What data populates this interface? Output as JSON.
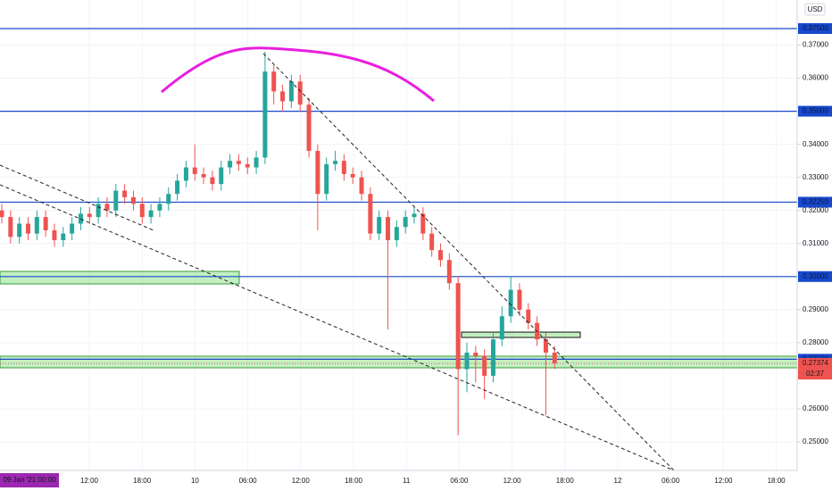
{
  "chart_data": {
    "type": "candlestick",
    "currency": "USD",
    "open": [
      0.32,
      0.318,
      0.312,
      0.316,
      0.313,
      0.318,
      0.314,
      0.311,
      0.313,
      0.316,
      0.319,
      0.318,
      0.322,
      0.32,
      0.326,
      0.324,
      0.322,
      0.318,
      0.32,
      0.322,
      0.325,
      0.329,
      0.333,
      0.331,
      0.33,
      0.328,
      0.333,
      0.335,
      0.334,
      0.333,
      0.336,
      0.362,
      0.356,
      0.353,
      0.359,
      0.352,
      0.338,
      0.325,
      0.334,
      0.335,
      0.331,
      0.33,
      0.325,
      0.313,
      0.318,
      0.311,
      0.315,
      0.318,
      0.319,
      0.313,
      0.308,
      0.305,
      0.298,
      0.272,
      0.277,
      0.276,
      0.27,
      0.281,
      0.288,
      0.296,
      0.29,
      0.286,
      0.281,
      0.277
    ],
    "high": [
      0.322,
      0.32,
      0.318,
      0.318,
      0.32,
      0.32,
      0.316,
      0.315,
      0.318,
      0.321,
      0.321,
      0.324,
      0.324,
      0.328,
      0.328,
      0.326,
      0.324,
      0.322,
      0.324,
      0.327,
      0.331,
      0.335,
      0.34,
      0.333,
      0.332,
      0.335,
      0.337,
      0.337,
      0.336,
      0.338,
      0.368,
      0.364,
      0.358,
      0.361,
      0.361,
      0.354,
      0.34,
      0.336,
      0.338,
      0.337,
      0.333,
      0.332,
      0.327,
      0.32,
      0.32,
      0.317,
      0.32,
      0.321,
      0.321,
      0.315,
      0.31,
      0.307,
      0.3,
      0.28,
      0.279,
      0.278,
      0.283,
      0.291,
      0.3,
      0.298,
      0.292,
      0.288,
      0.283,
      0.279
    ],
    "low": [
      0.316,
      0.31,
      0.31,
      0.311,
      0.311,
      0.312,
      0.309,
      0.309,
      0.311,
      0.314,
      0.316,
      0.316,
      0.318,
      0.318,
      0.322,
      0.32,
      0.316,
      0.316,
      0.318,
      0.32,
      0.323,
      0.327,
      0.329,
      0.328,
      0.326,
      0.326,
      0.331,
      0.332,
      0.331,
      0.331,
      0.334,
      0.352,
      0.35,
      0.351,
      0.35,
      0.336,
      0.314,
      0.323,
      0.332,
      0.329,
      0.328,
      0.323,
      0.311,
      0.311,
      0.284,
      0.309,
      0.313,
      0.316,
      0.311,
      0.306,
      0.303,
      0.296,
      0.252,
      0.265,
      0.268,
      0.263,
      0.268,
      0.279,
      0.286,
      0.288,
      0.284,
      0.279,
      0.258,
      0.272
    ],
    "close": [
      0.318,
      0.312,
      0.316,
      0.313,
      0.318,
      0.314,
      0.311,
      0.313,
      0.316,
      0.319,
      0.318,
      0.322,
      0.32,
      0.326,
      0.324,
      0.322,
      0.318,
      0.32,
      0.322,
      0.325,
      0.329,
      0.333,
      0.331,
      0.33,
      0.328,
      0.333,
      0.335,
      0.334,
      0.333,
      0.336,
      0.362,
      0.356,
      0.353,
      0.359,
      0.352,
      0.338,
      0.325,
      0.334,
      0.335,
      0.331,
      0.33,
      0.325,
      0.313,
      0.318,
      0.311,
      0.315,
      0.318,
      0.319,
      0.313,
      0.308,
      0.305,
      0.298,
      0.272,
      0.277,
      0.276,
      0.27,
      0.281,
      0.288,
      0.296,
      0.29,
      0.286,
      0.281,
      0.277,
      0.27374
    ],
    "up_color": "#26a69a",
    "down_color": "#ef5350",
    "ylim": [
      0.24136,
      0.38364
    ],
    "yticks": [
      {
        "value": 0.25,
        "label": "0.25000"
      },
      {
        "value": 0.26,
        "label": "0.26000"
      },
      {
        "value": 0.28,
        "label": "0.28000"
      },
      {
        "value": 0.29,
        "label": "0.29000"
      },
      {
        "value": 0.31,
        "label": "0.31000"
      },
      {
        "value": 0.32,
        "label": "0.32000"
      },
      {
        "value": 0.33,
        "label": "0.33000"
      },
      {
        "value": 0.34,
        "label": "0.34000"
      },
      {
        "value": 0.36,
        "label": "0.36000"
      },
      {
        "value": 0.37,
        "label": "0.37000"
      }
    ],
    "levels": [
      {
        "value": 0.375,
        "label": "0.37500"
      },
      {
        "value": 0.35,
        "label": "0.35000"
      },
      {
        "value": 0.3225,
        "label": "0.32250"
      },
      {
        "value": 0.3,
        "label": "0.30000"
      },
      {
        "value": 0.275,
        "label": "0.27500"
      }
    ],
    "level_color": "#1848cc",
    "zones": [
      [
        0.30157,
        0.29778
      ],
      [
        0.2832,
        0.28159
      ],
      [
        0.27592,
        0.27241
      ]
    ],
    "last_price": 0.27374,
    "countdown": "02:37",
    "time_labels": [
      "12:00",
      "18:00",
      "10",
      "06:00",
      "12:00",
      "18:00",
      "11",
      "06:00",
      "12:00",
      "18:00",
      "12",
      "06:00",
      "12:00",
      "18:00"
    ],
    "cursor_time": "09 Jan '21  00:00",
    "grid": true
  }
}
